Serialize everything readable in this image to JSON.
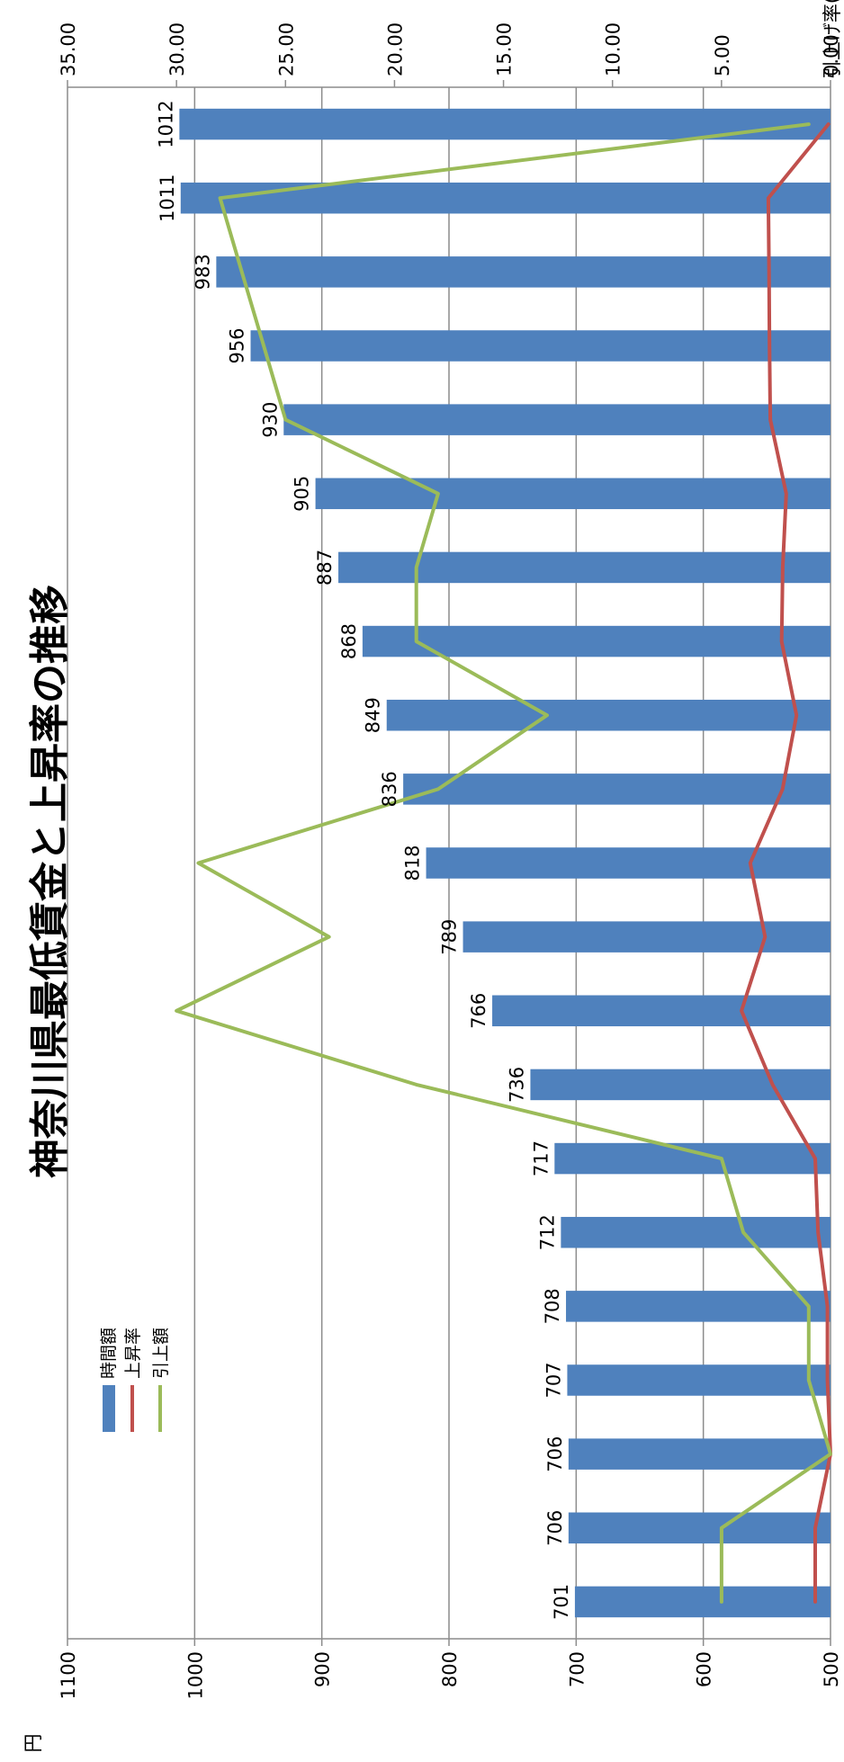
{
  "chart_data": {
    "type": "bar",
    "title": "神奈川県最低賃金と上昇率の推移",
    "left_axis_unit": "円",
    "right_axis_unit": "引上げ率(%)",
    "ylim_left": [
      500,
      1100
    ],
    "yticks_left": [
      500,
      600,
      700,
      800,
      900,
      1000,
      1100
    ],
    "ylim_right": [
      0,
      35
    ],
    "yticks_right": [
      "0.00",
      "5.00",
      "10.00",
      "15.00",
      "20.00",
      "25.00",
      "30.00",
      "35.00"
    ],
    "grid": true,
    "legend_position": "top-left",
    "series": [
      {
        "name": "時間額",
        "type": "bar",
        "axis": "left",
        "color": "#4F81BD",
        "values": [
          701,
          706,
          706,
          707,
          708,
          712,
          717,
          736,
          766,
          789,
          818,
          836,
          849,
          868,
          887,
          905,
          930,
          956,
          983,
          1011,
          1012
        ]
      },
      {
        "name": "上昇率",
        "type": "line",
        "axis": "right",
        "color": "#C0504D",
        "values": [
          0.7,
          0.7,
          0.0,
          0.14,
          0.14,
          0.57,
          0.7,
          2.66,
          4.08,
          3.0,
          3.68,
          2.2,
          1.56,
          2.24,
          2.19,
          2.03,
          2.76,
          2.8,
          2.82,
          2.85,
          0.1
        ]
      },
      {
        "name": "引上額",
        "type": "line",
        "axis": "right",
        "color": "#9BBB59",
        "values": [
          5,
          5,
          0,
          1,
          1,
          4,
          5,
          19,
          30,
          23,
          29,
          18,
          13,
          19,
          19,
          18,
          25,
          26,
          27,
          28,
          1
        ]
      }
    ]
  }
}
